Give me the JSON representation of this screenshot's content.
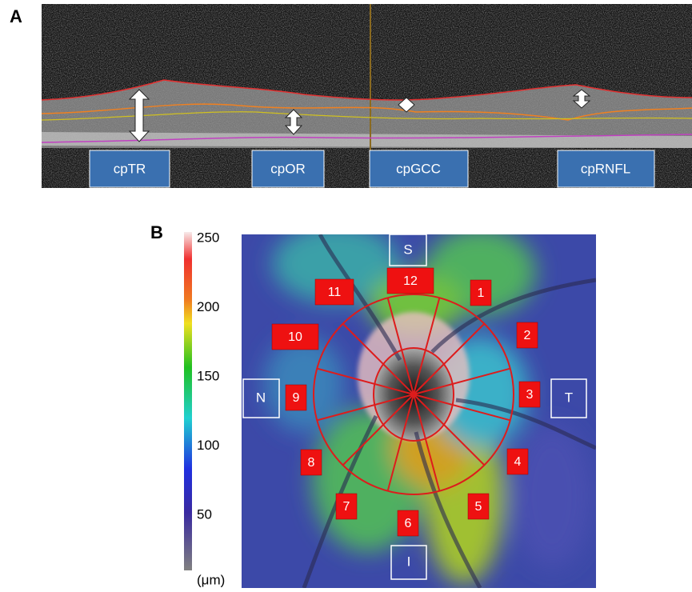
{
  "panel_a": {
    "label": "A",
    "layer_labels": [
      "cpTR",
      "cpOR",
      "cpGCC",
      "cpRNFL"
    ]
  },
  "panel_b": {
    "label": "B",
    "directions": {
      "superior": "S",
      "temporal": "T",
      "inferior": "I",
      "nasal": "N"
    },
    "sectors": [
      "1",
      "2",
      "3",
      "4",
      "5",
      "6",
      "7",
      "8",
      "9",
      "10",
      "11",
      "12"
    ],
    "colorbar": {
      "ticks": [
        250,
        200,
        150,
        100,
        50
      ],
      "unit": "(μm)"
    }
  }
}
